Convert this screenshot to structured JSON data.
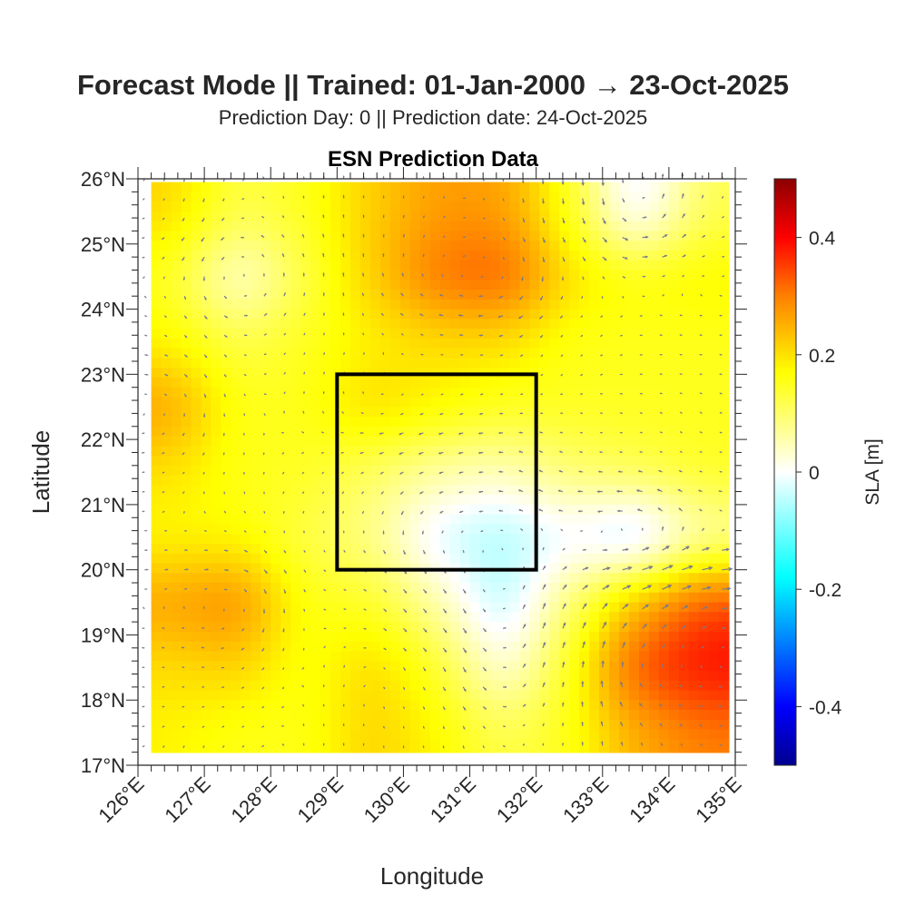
{
  "title": "Forecast Mode || Trained: 01-Jan-2000 → 23-Oct-2025",
  "subtitle": "Prediction Day: 0 || Prediction date: 24-Oct-2025",
  "chart_data": {
    "type": "heatmap",
    "title": "ESN Prediction Data",
    "xlabel": "Longitude",
    "ylabel": "Latitude",
    "xlim": [
      126,
      135
    ],
    "ylim": [
      17,
      26
    ],
    "data_extent": {
      "lon": [
        126.2,
        134.9
      ],
      "lat": [
        17.2,
        25.95
      ]
    },
    "xticks": [
      126,
      127,
      128,
      129,
      130,
      131,
      132,
      133,
      134,
      135
    ],
    "xtick_labels": [
      "126°E",
      "127°E",
      "128°E",
      "129°E",
      "130°E",
      "131°E",
      "132°E",
      "133°E",
      "134°E",
      "135°E"
    ],
    "yticks": [
      17,
      18,
      19,
      20,
      21,
      22,
      23,
      24,
      25,
      26
    ],
    "ytick_labels": [
      "17°N",
      "18°N",
      "19°N",
      "20°N",
      "21°N",
      "22°N",
      "23°N",
      "24°N",
      "25°N",
      "26°N"
    ],
    "grid_lon": [
      126.5,
      127.5,
      128.5,
      129.5,
      130.5,
      131.5,
      132.5,
      133.5,
      134.5
    ],
    "grid_lat": [
      25.5,
      24.5,
      23.5,
      22.5,
      21.5,
      20.5,
      19.5,
      18.5,
      17.5
    ],
    "sla_values": [
      [
        0.22,
        0.12,
        0.15,
        0.22,
        0.27,
        0.27,
        0.15,
        -0.06,
        0.12
      ],
      [
        0.15,
        0.0,
        0.12,
        0.22,
        0.32,
        0.35,
        0.2,
        0.17,
        0.18
      ],
      [
        0.18,
        0.12,
        0.15,
        0.18,
        0.2,
        0.2,
        0.15,
        0.15,
        0.15
      ],
      [
        0.28,
        0.15,
        0.15,
        0.22,
        0.18,
        0.15,
        0.15,
        0.15,
        0.15
      ],
      [
        0.2,
        0.15,
        0.15,
        0.1,
        0.06,
        0.04,
        0.1,
        0.12,
        0.15
      ],
      [
        0.17,
        0.17,
        0.12,
        0.08,
        -0.04,
        -0.07,
        -0.02,
        -0.1,
        0.05
      ],
      [
        0.27,
        0.31,
        0.15,
        0.15,
        0.06,
        -0.07,
        0.1,
        0.25,
        0.36
      ],
      [
        0.2,
        0.22,
        0.15,
        0.22,
        0.15,
        0.0,
        0.15,
        0.35,
        0.4
      ],
      [
        0.18,
        0.15,
        0.15,
        0.22,
        0.18,
        0.12,
        0.15,
        0.25,
        0.3
      ]
    ],
    "box": {
      "lon": [
        129,
        132
      ],
      "lat": [
        20,
        23
      ]
    },
    "vectors": "geostrophic velocity arrows (gray)",
    "colorbar": {
      "label": "SLA [m]",
      "range": [
        -0.5,
        0.5
      ],
      "ticks": [
        0.4,
        0.2,
        0,
        -0.2,
        -0.4
      ],
      "tick_labels": [
        "0.4",
        "0.2",
        "0",
        "-0.2",
        "-0.4"
      ],
      "colors": [
        [
          -0.5,
          "#00008f"
        ],
        [
          -0.4,
          "#0000ff"
        ],
        [
          -0.18,
          "#00ffff"
        ],
        [
          0,
          "#ffffff"
        ],
        [
          0.17,
          "#ffff00"
        ],
        [
          0.3,
          "#ff8000"
        ],
        [
          0.4,
          "#ff0000"
        ],
        [
          0.5,
          "#8b0000"
        ]
      ]
    },
    "arrow_color": "#7a7a8a",
    "box_color": "#000000"
  }
}
